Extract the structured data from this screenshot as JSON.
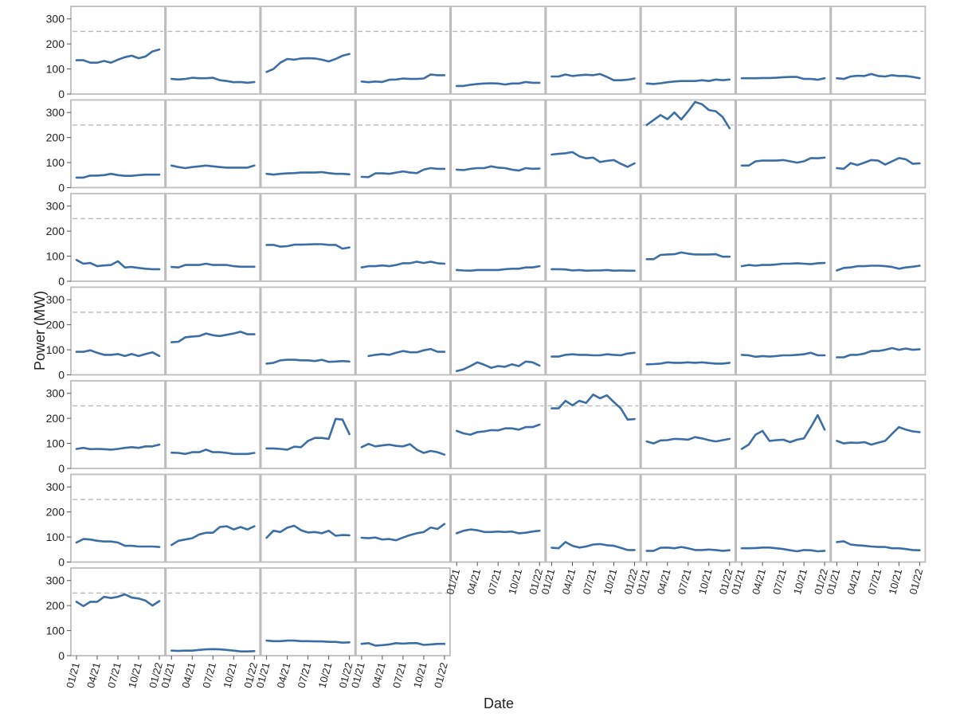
{
  "chart_data": {
    "type": "line",
    "title": "",
    "xlabel": "Date",
    "ylabel": "Power (MW)",
    "ylim": [
      0,
      350
    ],
    "y_ticks": [
      0,
      100,
      200,
      300
    ],
    "x_tick_labels": [
      "01/21",
      "04/21",
      "07/21",
      "10/21",
      "01/22"
    ],
    "x_tick_month_index": [
      0,
      3,
      6,
      9,
      12
    ],
    "reference_line": {
      "value": 250,
      "style": "dashed"
    },
    "grid": false,
    "legend": "none",
    "facet_columns": 9,
    "line_color": "#3b6ea5",
    "reference_color": "#b8b8b8",
    "frame_color": "#bdbdbd",
    "facets": [
      {
        "values": [
          135,
          135,
          125,
          125,
          132,
          125,
          137,
          147,
          153,
          143,
          150,
          170,
          178
        ]
      },
      {
        "values": [
          60,
          58,
          60,
          65,
          63,
          63,
          65,
          55,
          52,
          47,
          48,
          45,
          48
        ]
      },
      {
        "values": [
          88,
          100,
          125,
          140,
          137,
          142,
          143,
          142,
          137,
          130,
          140,
          153,
          160
        ]
      },
      {
        "values": [
          50,
          47,
          50,
          48,
          57,
          58,
          62,
          60,
          60,
          62,
          78,
          75,
          75
        ]
      },
      {
        "values": [
          32,
          32,
          37,
          40,
          42,
          43,
          42,
          38,
          42,
          42,
          48,
          45,
          45
        ]
      },
      {
        "values": [
          70,
          70,
          78,
          72,
          75,
          77,
          75,
          80,
          68,
          55,
          55,
          57,
          62
        ]
      },
      {
        "values": [
          42,
          40,
          43,
          47,
          50,
          52,
          52,
          52,
          55,
          52,
          58,
          55,
          58
        ]
      },
      {
        "values": [
          63,
          63,
          63,
          64,
          64,
          65,
          67,
          68,
          68,
          60,
          60,
          57,
          63
        ]
      },
      {
        "values": [
          63,
          60,
          70,
          73,
          72,
          80,
          72,
          70,
          75,
          72,
          72,
          68,
          63
        ]
      },
      {
        "values": [
          40,
          40,
          48,
          48,
          50,
          55,
          50,
          47,
          47,
          50,
          52,
          52,
          52
        ]
      },
      {
        "values": [
          88,
          82,
          78,
          82,
          85,
          88,
          85,
          82,
          80,
          80,
          80,
          80,
          88
        ]
      },
      {
        "values": [
          55,
          52,
          55,
          57,
          58,
          60,
          60,
          60,
          62,
          58,
          55,
          55,
          53
        ]
      },
      {
        "values": [
          43,
          42,
          57,
          57,
          55,
          60,
          65,
          60,
          58,
          72,
          78,
          75,
          75
        ]
      },
      {
        "values": [
          72,
          70,
          75,
          78,
          78,
          85,
          80,
          78,
          72,
          68,
          78,
          75,
          76
        ]
      },
      {
        "values": [
          132,
          135,
          137,
          142,
          125,
          117,
          120,
          102,
          107,
          110,
          95,
          83,
          97
        ]
      },
      {
        "values": [
          250,
          270,
          290,
          273,
          300,
          272,
          305,
          342,
          333,
          310,
          305,
          282,
          237
        ]
      },
      {
        "values": [
          88,
          88,
          105,
          108,
          108,
          108,
          110,
          105,
          100,
          105,
          118,
          117,
          120
        ]
      },
      {
        "values": [
          78,
          75,
          98,
          90,
          100,
          110,
          108,
          92,
          105,
          118,
          113,
          95,
          97
        ]
      },
      {
        "values": [
          85,
          70,
          73,
          60,
          63,
          65,
          80,
          55,
          57,
          53,
          50,
          48,
          48
        ]
      },
      {
        "values": [
          57,
          55,
          65,
          65,
          65,
          70,
          65,
          65,
          65,
          60,
          58,
          58,
          58
        ]
      },
      {
        "values": [
          145,
          145,
          138,
          140,
          146,
          146,
          147,
          148,
          148,
          145,
          145,
          130,
          135
        ]
      },
      {
        "values": [
          55,
          60,
          60,
          63,
          60,
          65,
          72,
          72,
          78,
          73,
          78,
          72,
          70
        ]
      },
      {
        "values": [
          45,
          43,
          42,
          45,
          45,
          45,
          45,
          48,
          50,
          50,
          55,
          55,
          60
        ]
      },
      {
        "values": [
          48,
          48,
          47,
          43,
          45,
          42,
          43,
          43,
          45,
          42,
          43,
          42,
          42
        ]
      },
      {
        "values": [
          88,
          88,
          105,
          107,
          108,
          115,
          110,
          107,
          107,
          107,
          108,
          98,
          98
        ]
      },
      {
        "values": [
          60,
          65,
          62,
          65,
          65,
          67,
          70,
          70,
          72,
          70,
          68,
          72,
          73
        ]
      },
      {
        "values": [
          43,
          53,
          55,
          60,
          60,
          62,
          62,
          60,
          57,
          50,
          55,
          58,
          62
        ]
      },
      {
        "values": [
          92,
          92,
          98,
          88,
          80,
          80,
          83,
          75,
          83,
          75,
          83,
          90,
          75
        ]
      },
      {
        "values": [
          130,
          132,
          150,
          153,
          155,
          165,
          158,
          155,
          160,
          165,
          172,
          162,
          162
        ]
      },
      {
        "values": [
          45,
          48,
          58,
          60,
          60,
          58,
          58,
          55,
          60,
          52,
          53,
          55,
          53
        ]
      },
      {
        "values": [
          null,
          75,
          80,
          83,
          80,
          88,
          95,
          90,
          90,
          98,
          103,
          92,
          92
        ]
      },
      {
        "values": [
          15,
          22,
          35,
          50,
          40,
          28,
          35,
          32,
          42,
          35,
          53,
          50,
          37
        ]
      },
      {
        "values": [
          73,
          73,
          80,
          82,
          80,
          80,
          78,
          78,
          82,
          80,
          78,
          85,
          88
        ]
      },
      {
        "values": [
          42,
          43,
          45,
          50,
          48,
          48,
          50,
          48,
          50,
          47,
          45,
          45,
          48
        ]
      },
      {
        "values": [
          80,
          78,
          72,
          75,
          73,
          75,
          78,
          78,
          80,
          82,
          88,
          78,
          78
        ]
      },
      {
        "values": [
          70,
          70,
          80,
          80,
          85,
          95,
          95,
          100,
          107,
          100,
          105,
          100,
          102
        ]
      },
      {
        "values": [
          78,
          82,
          77,
          78,
          77,
          75,
          78,
          82,
          85,
          82,
          88,
          88,
          95
        ]
      },
      {
        "values": [
          63,
          62,
          58,
          65,
          65,
          75,
          65,
          65,
          62,
          58,
          58,
          58,
          62
        ]
      },
      {
        "values": [
          80,
          80,
          78,
          75,
          87,
          85,
          110,
          122,
          122,
          118,
          198,
          195,
          137
        ]
      },
      {
        "values": [
          85,
          98,
          88,
          92,
          95,
          90,
          88,
          97,
          75,
          62,
          70,
          65,
          55
        ]
      },
      {
        "values": [
          150,
          140,
          135,
          145,
          148,
          153,
          152,
          160,
          160,
          155,
          165,
          165,
          175
        ]
      },
      {
        "values": [
          240,
          240,
          270,
          252,
          270,
          262,
          295,
          280,
          292,
          265,
          240,
          195,
          197
        ]
      },
      {
        "values": [
          108,
          100,
          112,
          113,
          118,
          117,
          115,
          125,
          120,
          113,
          108,
          113,
          118
        ]
      },
      {
        "values": [
          78,
          95,
          135,
          150,
          110,
          113,
          115,
          105,
          115,
          120,
          165,
          213,
          155
        ]
      },
      {
        "values": [
          110,
          100,
          103,
          102,
          105,
          95,
          103,
          110,
          138,
          165,
          155,
          148,
          145
        ]
      },
      {
        "values": [
          78,
          92,
          90,
          85,
          82,
          82,
          78,
          65,
          65,
          62,
          62,
          62,
          60
        ]
      },
      {
        "values": [
          68,
          85,
          90,
          95,
          110,
          117,
          117,
          140,
          143,
          130,
          140,
          130,
          143
        ]
      },
      {
        "values": [
          97,
          125,
          120,
          137,
          145,
          127,
          118,
          120,
          115,
          125,
          105,
          108,
          107
        ]
      },
      {
        "values": [
          97,
          95,
          98,
          90,
          92,
          87,
          98,
          108,
          115,
          120,
          138,
          132,
          152
        ]
      },
      {
        "values": [
          115,
          125,
          130,
          127,
          120,
          120,
          122,
          120,
          122,
          115,
          117,
          122,
          125
        ]
      },
      {
        "values": [
          57,
          55,
          80,
          65,
          58,
          62,
          70,
          72,
          67,
          65,
          57,
          48,
          48
        ]
      },
      {
        "values": [
          45,
          45,
          57,
          58,
          55,
          60,
          55,
          48,
          48,
          50,
          48,
          45,
          47
        ]
      },
      {
        "values": [
          55,
          55,
          56,
          58,
          58,
          55,
          52,
          47,
          43,
          48,
          47,
          43,
          45
        ]
      },
      {
        "values": [
          80,
          83,
          70,
          67,
          65,
          62,
          60,
          60,
          55,
          55,
          52,
          48,
          47
        ]
      },
      {
        "values": [
          215,
          198,
          215,
          215,
          235,
          230,
          235,
          245,
          232,
          228,
          220,
          200,
          218
        ]
      },
      {
        "values": [
          20,
          19,
          20,
          20,
          23,
          25,
          26,
          25,
          23,
          20,
          17,
          17,
          18
        ]
      },
      {
        "values": [
          60,
          58,
          58,
          60,
          60,
          58,
          58,
          57,
          57,
          55,
          55,
          52,
          53
        ]
      },
      {
        "values": [
          47,
          50,
          40,
          42,
          45,
          50,
          48,
          50,
          50,
          43,
          45,
          47,
          47
        ]
      }
    ]
  }
}
